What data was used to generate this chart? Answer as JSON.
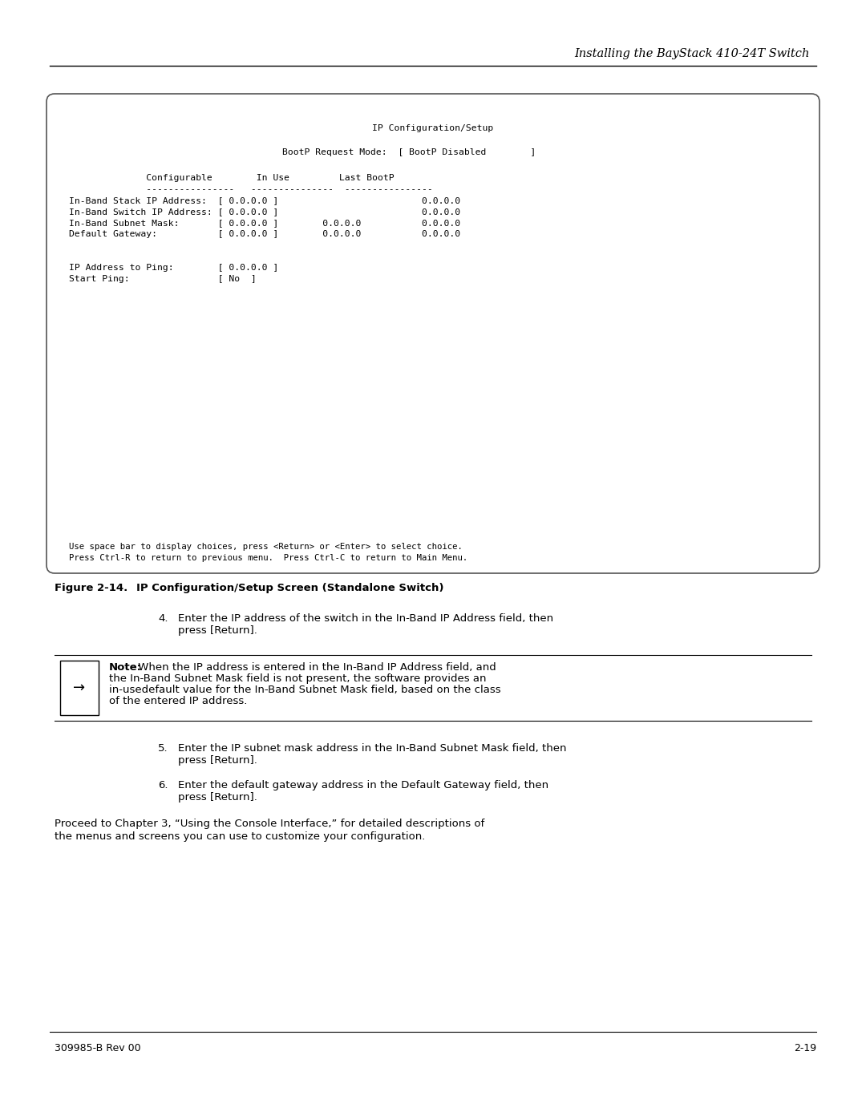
{
  "page_bg": "#ffffff",
  "header_text": "Installing the BayStack 410-24T Switch",
  "header_fontsize": 10.5,
  "terminal_title": "IP Configuration/Setup",
  "terminal_bootp": "BootP Request Mode:  [ BootP Disabled        ]",
  "terminal_col_hdr": "              Configurable        In Use         Last BootP",
  "terminal_sep": "              ----------------   ---------------  ----------------",
  "terminal_rows": [
    "In-Band Stack IP Address:  [ 0.0.0.0 ]                          0.0.0.0",
    "In-Band Switch IP Address: [ 0.0.0.0 ]                          0.0.0.0",
    "In-Band Subnet Mask:       [ 0.0.0.0 ]        0.0.0.0           0.0.0.0",
    "Default Gateway:           [ 0.0.0.0 ]        0.0.0.0           0.0.0.0"
  ],
  "terminal_ping1": "IP Address to Ping:        [ 0.0.0.0 ]",
  "terminal_ping2": "Start Ping:                [ No  ]",
  "terminal_footer1": "Use space bar to display choices, press <Return> or <Enter> to select choice.",
  "terminal_footer2": "Press Ctrl-R to return to previous menu.  Press Ctrl-C to return to Main Menu.",
  "figure_label": "Figure 2-14.",
  "figure_caption": "IP Configuration/Setup Screen (Standalone Switch)",
  "step4_text": "Enter the IP address of the switch in the In-Band IP Address field, then\npress [Return].",
  "note_bold": "Note:",
  "note_line1": " When the IP address is entered in the In-Band IP Address field, and",
  "note_line2": "the In-Band Subnet Mask field is not present, the software provides an",
  "note_line3": "in-usedefault value for the In-Band Subnet Mask field, based on the class",
  "note_line4": "of the entered IP address.",
  "step5_text": "Enter the IP subnet mask address in the In-Band Subnet Mask field, then\npress [Return].",
  "step6_text": "Enter the default gateway address in the Default Gateway field, then\npress [Return].",
  "closing_line1": "Proceed to Chapter 3, “Using the Console Interface,” for detailed descriptions of",
  "closing_line2": "the menus and screens you can use to customize your configuration.",
  "footer_left": "309985-B Rev 00",
  "footer_right": "2-19",
  "body_fontsize": 9.5,
  "mono_fontsize": 8.2
}
